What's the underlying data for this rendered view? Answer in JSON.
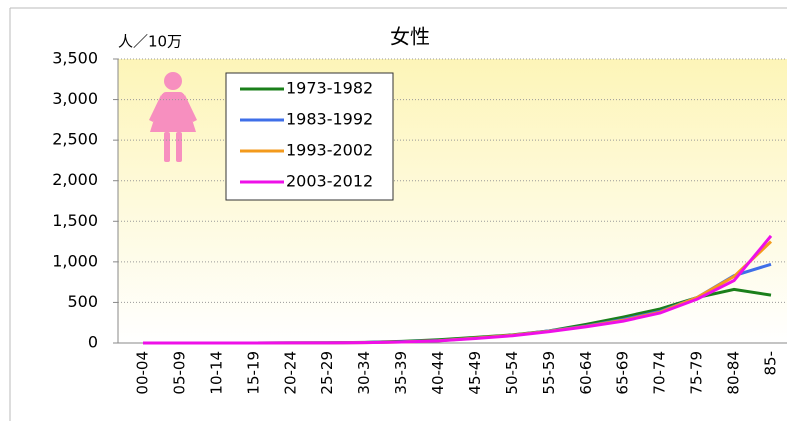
{
  "chart_data": {
    "type": "line",
    "title": "女性",
    "y_label": "人／10万",
    "categories": [
      "00-04",
      "05-09",
      "10-14",
      "15-19",
      "20-24",
      "25-29",
      "30-34",
      "35-39",
      "40-44",
      "45-49",
      "50-54",
      "55-59",
      "60-64",
      "65-69",
      "70-74",
      "75-79",
      "80-84",
      "85-"
    ],
    "series": [
      {
        "name": "1973-1982",
        "color": "#1a7f1a",
        "values": [
          0,
          0,
          0,
          0,
          1,
          3,
          8,
          20,
          40,
          70,
          100,
          150,
          230,
          320,
          420,
          560,
          660,
          590
        ]
      },
      {
        "name": "1983-1992",
        "color": "#3f6fe8",
        "values": [
          0,
          0,
          0,
          0,
          1,
          2,
          6,
          15,
          30,
          60,
          95,
          150,
          210,
          290,
          390,
          560,
          830,
          970
        ]
      },
      {
        "name": "1993-2002",
        "color": "#f39a1c",
        "values": [
          0,
          0,
          0,
          0,
          1,
          2,
          5,
          12,
          28,
          60,
          95,
          145,
          205,
          280,
          380,
          560,
          820,
          1250
        ]
      },
      {
        "name": "2003-2012",
        "color": "#ee10e8",
        "values": [
          0,
          0,
          0,
          0,
          1,
          2,
          5,
          12,
          26,
          55,
          90,
          140,
          200,
          270,
          370,
          540,
          770,
          1320
        ]
      }
    ],
    "ylim": [
      0,
      3500
    ],
    "yticks": [
      0,
      500,
      {
        "value": 1000,
        "label": "1,000"
      },
      {
        "value": 1500,
        "label": "1,500"
      },
      {
        "value": 2000,
        "label": "2,000"
      },
      {
        "value": 2500,
        "label": "2,500"
      },
      {
        "value": 3000,
        "label": "3,000"
      },
      {
        "value": 3500,
        "label": "3,500"
      }
    ],
    "grid": true,
    "legend": "upper-left"
  }
}
